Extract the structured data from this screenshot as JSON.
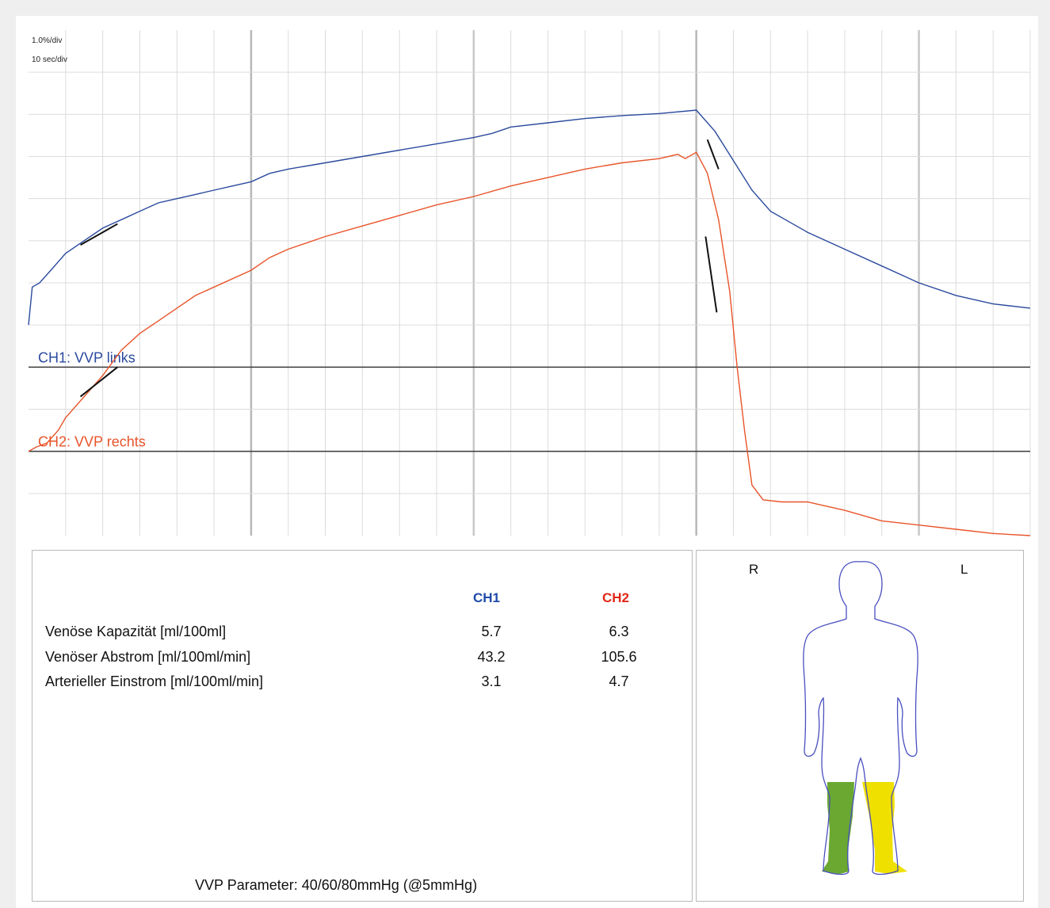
{
  "chart_data": {
    "type": "line",
    "scale": {
      "y_per_div": "1.0%/div",
      "x_per_div": "10 sec/div"
    },
    "x_range_divisions": [
      0,
      27
    ],
    "y_range_divisions": [
      0,
      12
    ],
    "vertical_markers": [
      6,
      18
    ],
    "series": [
      {
        "name": "CH1: VVP links",
        "color": "#2b4a9e",
        "baseline_div": 4,
        "points": [
          [
            0,
            5.0
          ],
          [
            0.1,
            5.9
          ],
          [
            0.3,
            6.0
          ],
          [
            0.6,
            6.3
          ],
          [
            1.0,
            6.7
          ],
          [
            1.5,
            7.0
          ],
          [
            2.0,
            7.3
          ],
          [
            2.5,
            7.5
          ],
          [
            3.0,
            7.7
          ],
          [
            3.5,
            7.9
          ],
          [
            4.0,
            8.0
          ],
          [
            4.5,
            8.1
          ],
          [
            5.0,
            8.2
          ],
          [
            5.5,
            8.3
          ],
          [
            6.0,
            8.4
          ],
          [
            6.5,
            8.6
          ],
          [
            7.0,
            8.7
          ],
          [
            8.0,
            8.85
          ],
          [
            9.0,
            9.0
          ],
          [
            10.0,
            9.15
          ],
          [
            11.0,
            9.3
          ],
          [
            12.0,
            9.45
          ],
          [
            12.5,
            9.55
          ],
          [
            13.0,
            9.7
          ],
          [
            14.0,
            9.8
          ],
          [
            15.0,
            9.9
          ],
          [
            16.0,
            9.97
          ],
          [
            17.0,
            10.02
          ],
          [
            18.0,
            10.1
          ],
          [
            18.5,
            9.6
          ],
          [
            19.0,
            8.9
          ],
          [
            19.5,
            8.2
          ],
          [
            20.0,
            7.7
          ],
          [
            21.0,
            7.2
          ],
          [
            22.0,
            6.8
          ],
          [
            23.0,
            6.4
          ],
          [
            24.0,
            6.0
          ],
          [
            25.0,
            5.7
          ],
          [
            26.0,
            5.5
          ],
          [
            27.0,
            5.4
          ]
        ]
      },
      {
        "name": "CH2: VVP rechts",
        "color": "#e8542a",
        "baseline_div": 2,
        "points": [
          [
            0,
            2.0
          ],
          [
            0.2,
            2.1
          ],
          [
            0.5,
            2.2
          ],
          [
            0.8,
            2.5
          ],
          [
            1.0,
            2.8
          ],
          [
            1.5,
            3.3
          ],
          [
            2.0,
            3.8
          ],
          [
            2.5,
            4.4
          ],
          [
            3.0,
            4.8
          ],
          [
            3.5,
            5.1
          ],
          [
            4.0,
            5.4
          ],
          [
            4.5,
            5.7
          ],
          [
            5.0,
            5.9
          ],
          [
            6.0,
            6.3
          ],
          [
            6.5,
            6.6
          ],
          [
            7.0,
            6.8
          ],
          [
            8.0,
            7.1
          ],
          [
            9.0,
            7.35
          ],
          [
            10.0,
            7.6
          ],
          [
            11.0,
            7.85
          ],
          [
            12.0,
            8.05
          ],
          [
            13.0,
            8.3
          ],
          [
            14.0,
            8.5
          ],
          [
            15.0,
            8.7
          ],
          [
            16.0,
            8.85
          ],
          [
            17.0,
            8.95
          ],
          [
            17.5,
            9.05
          ],
          [
            17.7,
            8.95
          ],
          [
            18.0,
            9.1
          ],
          [
            18.3,
            8.6
          ],
          [
            18.6,
            7.5
          ],
          [
            18.9,
            5.8
          ],
          [
            19.1,
            4.0
          ],
          [
            19.3,
            2.5
          ],
          [
            19.5,
            1.2
          ],
          [
            19.8,
            0.85
          ],
          [
            20.3,
            0.8
          ],
          [
            21.0,
            0.8
          ],
          [
            22.0,
            0.6
          ],
          [
            23.0,
            0.35
          ],
          [
            24.0,
            0.25
          ],
          [
            25.0,
            0.15
          ],
          [
            26.0,
            0.05
          ],
          [
            27.0,
            0.0
          ]
        ]
      }
    ],
    "fit_segments": [
      {
        "x": [
          1.4,
          2.4
        ],
        "y": [
          6.9,
          7.4
        ]
      },
      {
        "x": [
          18.3,
          18.6
        ],
        "y": [
          9.4,
          8.7
        ]
      },
      {
        "x": [
          1.4,
          2.4
        ],
        "y": [
          3.3,
          4.0
        ]
      },
      {
        "x": [
          18.25,
          18.55
        ],
        "y": [
          7.1,
          5.3
        ]
      }
    ]
  },
  "table": {
    "col_ch1": "CH1",
    "col_ch2": "CH2",
    "ch1_color": "#1f4aa8",
    "ch2_color": "#e02818",
    "rows": [
      {
        "label": "Venöse Kapazität [ml/100ml]",
        "ch1": "5.7",
        "ch2": "6.3"
      },
      {
        "label": "Venöser Abstrom [ml/100ml/min]",
        "ch1": "43.2",
        "ch2": "105.6"
      },
      {
        "label": "Arterieller Einstrom [ml/100ml/min]",
        "ch1": "3.1",
        "ch2": "4.7"
      }
    ],
    "footer": "VVP Parameter: 40/60/80mmHg (@5mmHg)"
  },
  "figure": {
    "right_letter": "R",
    "left_letter": "L",
    "right_leg_color": "#6aa832",
    "left_leg_color": "#f0e000"
  }
}
